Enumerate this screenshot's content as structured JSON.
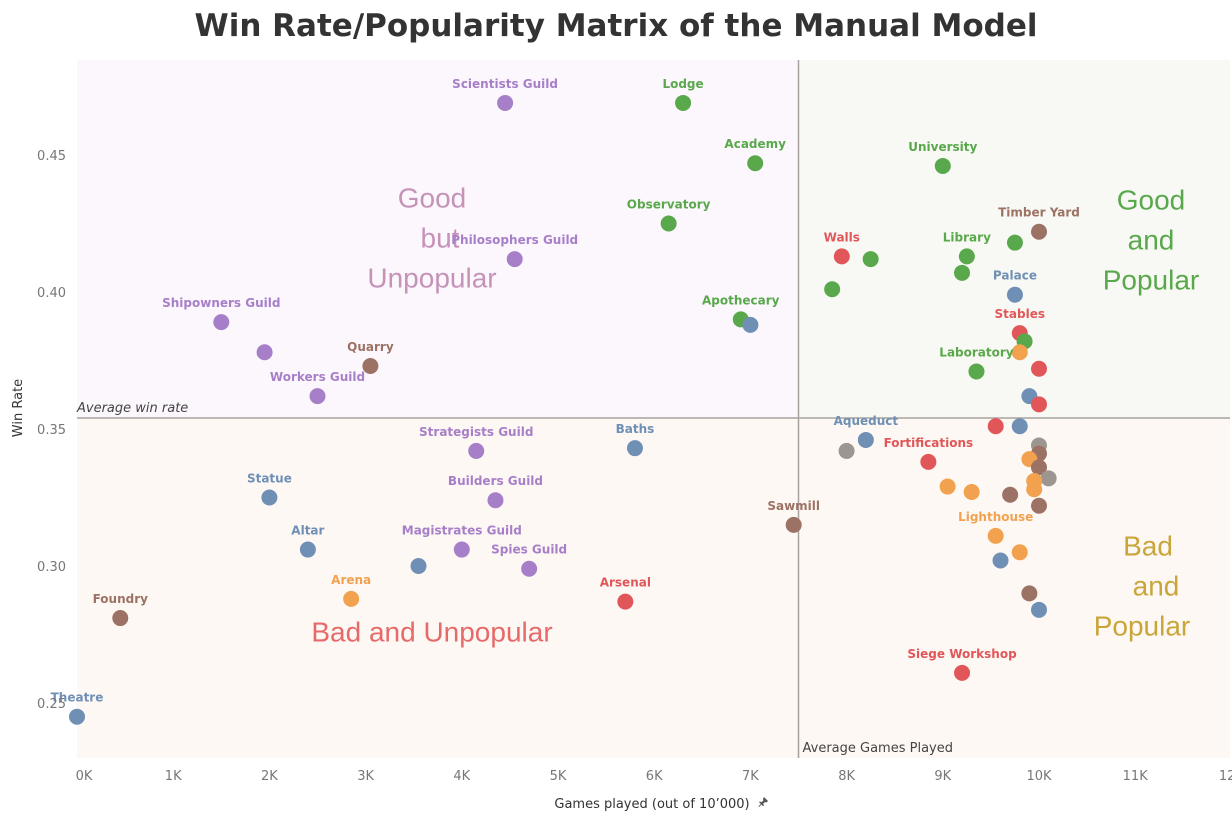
{
  "chart_data": {
    "type": "scatter",
    "title": "Win Rate/Popularity Matrix of the Manual Model",
    "xlabel": "Games played (out of 10’000)",
    "ylabel": "Win Rate",
    "xlim": [
      0,
      12000
    ],
    "ylim": [
      0.229,
      0.482
    ],
    "x_ticks": [
      0,
      1000,
      2000,
      3000,
      4000,
      5000,
      6000,
      7000,
      8000,
      9000,
      10000,
      11000,
      12000
    ],
    "x_tick_labels": [
      "0K",
      "1K",
      "2K",
      "3K",
      "4K",
      "5K",
      "6K",
      "7K",
      "8K",
      "9K",
      "10K",
      "11K",
      "12K"
    ],
    "y_ticks": [
      0.25,
      0.3,
      0.35,
      0.4,
      0.45
    ],
    "y_tick_labels": [
      "0.25",
      "0.30",
      "0.35",
      "0.40",
      "0.45"
    ],
    "grid": false,
    "reference_lines": {
      "average_win_rate": {
        "value": 0.354,
        "label": "Average win rate"
      },
      "average_games_played": {
        "value": 7500,
        "label": "Average Games Played"
      }
    },
    "colors": {
      "purple": "#a77fc9",
      "green": "#59a84b",
      "red": "#e15759",
      "blue": "#6f8fb5",
      "brown": "#9c7265",
      "orange": "#f2a14f",
      "gray": "#9d9590",
      "quad_top_left": "#fbf7fc",
      "quad_top_right": "#f8f9f4",
      "quad_bottom": "#fdf8f4",
      "ref_line": "#a8a29e",
      "quad_label_top_left": "#c693b8",
      "quad_label_top_right": "#59a84b",
      "quad_label_bottom_left": "#e66a6a",
      "quad_label_bottom_right": "#c9a53a"
    },
    "quadrant_labels": {
      "top_left": [
        "Good",
        "but",
        "Unpopular"
      ],
      "top_right": [
        "Good",
        "and",
        "Popular"
      ],
      "bottom_left": [
        "Bad and Unpopular"
      ],
      "bottom_right": [
        "Bad",
        "and",
        "Popular"
      ]
    },
    "points": [
      {
        "label": "Scientists Guild",
        "x": 4450,
        "y": 0.469,
        "color": "purple"
      },
      {
        "label": "Lodge",
        "x": 6300,
        "y": 0.469,
        "color": "green"
      },
      {
        "label": "Academy",
        "x": 7050,
        "y": 0.447,
        "color": "green"
      },
      {
        "label": "University",
        "x": 9000,
        "y": 0.446,
        "color": "green"
      },
      {
        "label": "Observatory",
        "x": 6150,
        "y": 0.425,
        "color": "green"
      },
      {
        "label": "Philosophers Guild",
        "x": 4550,
        "y": 0.412,
        "color": "purple"
      },
      {
        "label": "Walls",
        "x": 7950,
        "y": 0.413,
        "color": "red"
      },
      {
        "label": "",
        "x": 8250,
        "y": 0.412,
        "color": "green"
      },
      {
        "label": "Library",
        "x": 9250,
        "y": 0.413,
        "color": "green"
      },
      {
        "label": "",
        "x": 9750,
        "y": 0.418,
        "color": "green"
      },
      {
        "label": "Timber Yard",
        "x": 10000,
        "y": 0.422,
        "color": "brown"
      },
      {
        "label": "",
        "x": 9200,
        "y": 0.407,
        "color": "green"
      },
      {
        "label": "",
        "x": 7850,
        "y": 0.401,
        "color": "green"
      },
      {
        "label": "Palace",
        "x": 9750,
        "y": 0.399,
        "color": "blue"
      },
      {
        "label": "Shipowners Guild",
        "x": 1500,
        "y": 0.389,
        "color": "purple"
      },
      {
        "label": "Apothecary",
        "x": 6900,
        "y": 0.39,
        "color": "green"
      },
      {
        "label": "",
        "x": 7000,
        "y": 0.388,
        "color": "blue"
      },
      {
        "label": "Stables",
        "x": 9800,
        "y": 0.385,
        "color": "red"
      },
      {
        "label": "",
        "x": 9850,
        "y": 0.382,
        "color": "green"
      },
      {
        "label": "",
        "x": 1950,
        "y": 0.378,
        "color": "purple"
      },
      {
        "label": "Quarry",
        "x": 3050,
        "y": 0.373,
        "color": "brown"
      },
      {
        "label": "",
        "x": 9800,
        "y": 0.378,
        "color": "orange"
      },
      {
        "label": "Laboratory",
        "x": 9350,
        "y": 0.371,
        "color": "green"
      },
      {
        "label": "",
        "x": 10000,
        "y": 0.372,
        "color": "red"
      },
      {
        "label": "Workers Guild",
        "x": 2500,
        "y": 0.362,
        "color": "purple"
      },
      {
        "label": "",
        "x": 9900,
        "y": 0.362,
        "color": "blue"
      },
      {
        "label": "",
        "x": 10000,
        "y": 0.359,
        "color": "red"
      },
      {
        "label": "",
        "x": 9550,
        "y": 0.351,
        "color": "red"
      },
      {
        "label": "",
        "x": 9800,
        "y": 0.351,
        "color": "blue"
      },
      {
        "label": "Aqueduct",
        "x": 8200,
        "y": 0.346,
        "color": "blue"
      },
      {
        "label": "Strategists Guild",
        "x": 4150,
        "y": 0.342,
        "color": "purple"
      },
      {
        "label": "Baths",
        "x": 5800,
        "y": 0.343,
        "color": "blue"
      },
      {
        "label": "",
        "x": 8000,
        "y": 0.342,
        "color": "gray"
      },
      {
        "label": "",
        "x": 10000,
        "y": 0.344,
        "color": "gray"
      },
      {
        "label": "",
        "x": 10000,
        "y": 0.341,
        "color": "brown"
      },
      {
        "label": "Fortifications",
        "x": 8850,
        "y": 0.338,
        "color": "red"
      },
      {
        "label": "",
        "x": 9900,
        "y": 0.339,
        "color": "orange"
      },
      {
        "label": "",
        "x": 10000,
        "y": 0.336,
        "color": "brown"
      },
      {
        "label": "",
        "x": 10100,
        "y": 0.332,
        "color": "gray"
      },
      {
        "label": "",
        "x": 9950,
        "y": 0.331,
        "color": "orange"
      },
      {
        "label": "",
        "x": 9950,
        "y": 0.328,
        "color": "orange"
      },
      {
        "label": "Statue",
        "x": 2000,
        "y": 0.325,
        "color": "blue"
      },
      {
        "label": "Builders Guild",
        "x": 4350,
        "y": 0.324,
        "color": "purple"
      },
      {
        "label": "",
        "x": 9050,
        "y": 0.329,
        "color": "orange"
      },
      {
        "label": "",
        "x": 9300,
        "y": 0.327,
        "color": "orange"
      },
      {
        "label": "",
        "x": 9700,
        "y": 0.326,
        "color": "brown"
      },
      {
        "label": "",
        "x": 10000,
        "y": 0.322,
        "color": "brown"
      },
      {
        "label": "Sawmill",
        "x": 7450,
        "y": 0.315,
        "color": "brown"
      },
      {
        "label": "Lighthouse",
        "x": 9550,
        "y": 0.311,
        "color": "orange"
      },
      {
        "label": "Altar",
        "x": 2400,
        "y": 0.306,
        "color": "blue"
      },
      {
        "label": "Magistrates Guild",
        "x": 4000,
        "y": 0.306,
        "color": "purple"
      },
      {
        "label": "",
        "x": 9800,
        "y": 0.305,
        "color": "orange"
      },
      {
        "label": "",
        "x": 3550,
        "y": 0.3,
        "color": "blue"
      },
      {
        "label": "Spies Guild",
        "x": 4700,
        "y": 0.299,
        "color": "purple"
      },
      {
        "label": "",
        "x": 9600,
        "y": 0.302,
        "color": "blue"
      },
      {
        "label": "Arena",
        "x": 2850,
        "y": 0.288,
        "color": "orange"
      },
      {
        "label": "Arsenal",
        "x": 5700,
        "y": 0.287,
        "color": "red"
      },
      {
        "label": "",
        "x": 9900,
        "y": 0.29,
        "color": "brown"
      },
      {
        "label": "Foundry",
        "x": 450,
        "y": 0.281,
        "color": "brown"
      },
      {
        "label": "",
        "x": 10000,
        "y": 0.284,
        "color": "blue"
      },
      {
        "label": "Siege Workshop",
        "x": 9200,
        "y": 0.261,
        "color": "red"
      },
      {
        "label": "Theatre",
        "x": 0,
        "y": 0.245,
        "color": "blue"
      }
    ]
  }
}
